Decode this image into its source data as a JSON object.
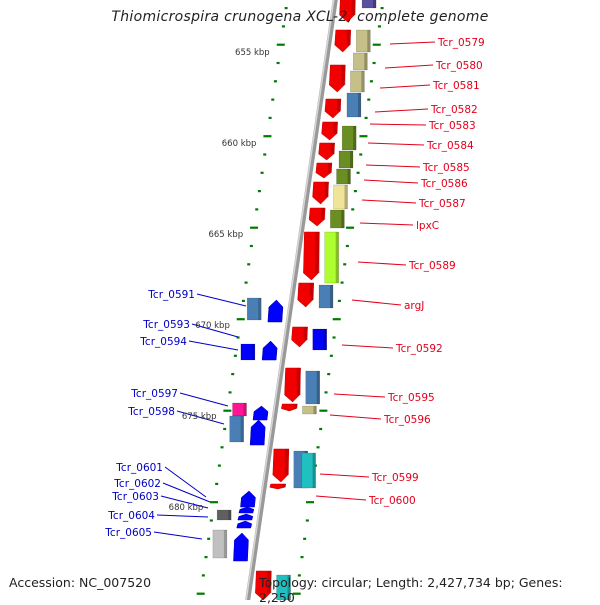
{
  "title": "Thiomicrospira crunogena XCL-2, complete genome",
  "footer": {
    "accession": "Accession: NC_007520",
    "summary": "Topology: circular; Length: 2,427,734 bp; Genes: 2,250"
  },
  "colors": {
    "forward_gene_label": "#e3001b",
    "reverse_gene_label": "#0000c8",
    "backbone": "#8c8c8c",
    "tick": "#007a00"
  },
  "scale_labels": [
    "655 kbp",
    "660 kbp",
    "665 kbp",
    "670 kbp",
    "675 kbp",
    "680 kbp"
  ],
  "forward_genes": [
    {
      "label": "Tcr_0579"
    },
    {
      "label": "Tcr_0580"
    },
    {
      "label": "Tcr_0581"
    },
    {
      "label": "Tcr_0582"
    },
    {
      "label": "Tcr_0583"
    },
    {
      "label": "Tcr_0584"
    },
    {
      "label": "Tcr_0585"
    },
    {
      "label": "Tcr_0586"
    },
    {
      "label": "Tcr_0587"
    },
    {
      "label": "lpxC"
    },
    {
      "label": "Tcr_0589"
    },
    {
      "label": "argJ"
    },
    {
      "label": "Tcr_0592"
    },
    {
      "label": "Tcr_0595"
    },
    {
      "label": "Tcr_0596"
    },
    {
      "label": "Tcr_0599"
    },
    {
      "label": "Tcr_0600"
    }
  ],
  "reverse_genes": [
    {
      "label": "Tcr_0591"
    },
    {
      "label": "Tcr_0593"
    },
    {
      "label": "Tcr_0594"
    },
    {
      "label": "Tcr_0597"
    },
    {
      "label": "Tcr_0598"
    },
    {
      "label": "Tcr_0601"
    },
    {
      "label": "Tcr_0602"
    },
    {
      "label": "Tcr_0603"
    },
    {
      "label": "Tcr_0604"
    },
    {
      "label": "Tcr_0605"
    }
  ]
}
